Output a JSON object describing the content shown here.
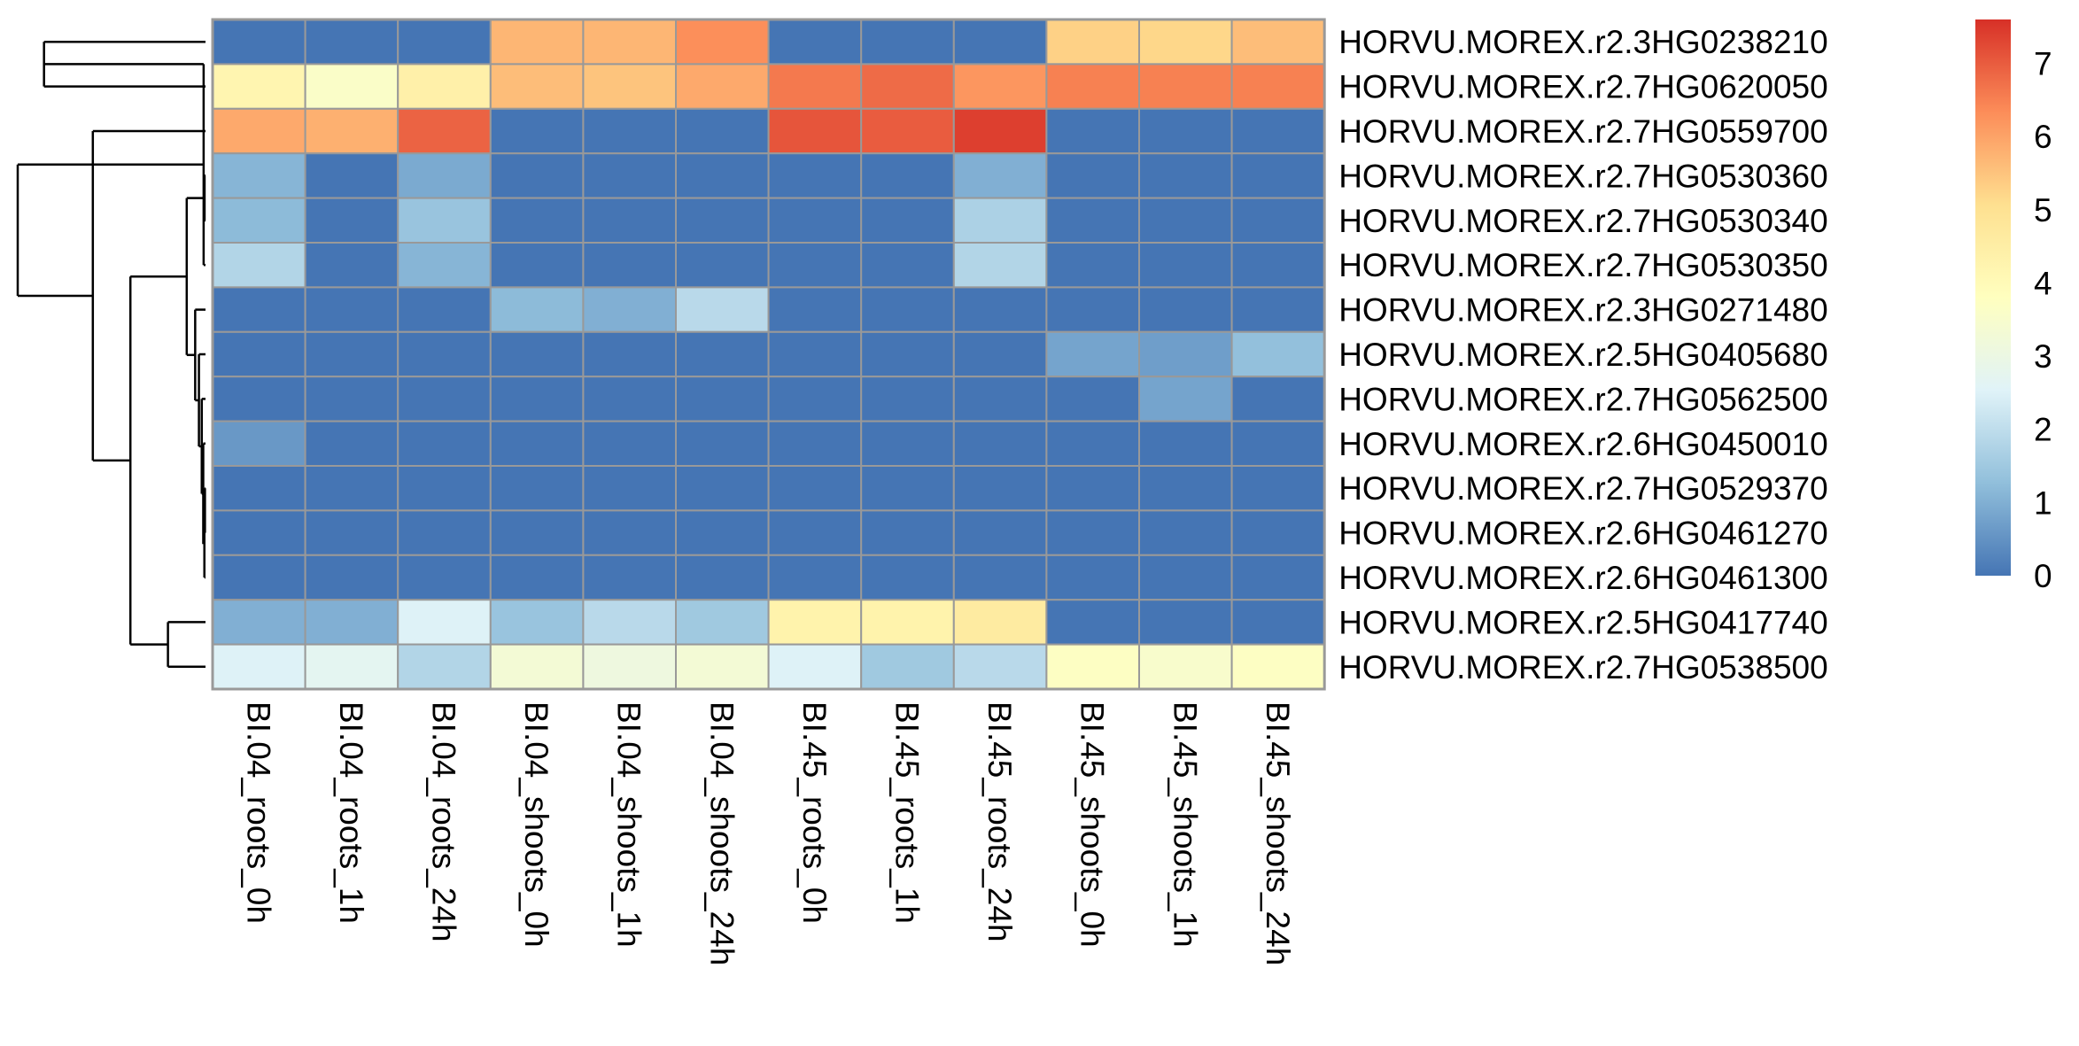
{
  "chart_data": {
    "type": "heatmap",
    "title": "",
    "xlabel": "",
    "ylabel": "",
    "columns": [
      "BI.04_roots_0h",
      "BI.04_roots_1h",
      "BI.04_roots_24h",
      "BI.04_shoots_0h",
      "BI.04_shoots_1h",
      "BI.04_shoots_24h",
      "BI.45_roots_0h",
      "BI.45_roots_1h",
      "BI.45_roots_24h",
      "BI.45_shoots_0h",
      "BI.45_shoots_1h",
      "BI.45_shoots_24h"
    ],
    "rows": [
      "HORVU.MOREX.r2.3HG0238210",
      "HORVU.MOREX.r2.7HG0620050",
      "HORVU.MOREX.r2.7HG0559700",
      "HORVU.MOREX.r2.7HG0530360",
      "HORVU.MOREX.r2.7HG0530340",
      "HORVU.MOREX.r2.7HG0530350",
      "HORVU.MOREX.r2.3HG0271480",
      "HORVU.MOREX.r2.5HG0405680",
      "HORVU.MOREX.r2.7HG0562500",
      "HORVU.MOREX.r2.6HG0450010",
      "HORVU.MOREX.r2.7HG0529370",
      "HORVU.MOREX.r2.6HG0461270",
      "HORVU.MOREX.r2.6HG0461300",
      "HORVU.MOREX.r2.5HG0417740",
      "HORVU.MOREX.r2.7HG0538500"
    ],
    "values": [
      [
        0.0,
        0.0,
        0.0,
        5.7,
        5.7,
        6.3,
        0.0,
        0.0,
        0.0,
        5.3,
        5.2,
        5.6
      ],
      [
        4.2,
        3.6,
        4.4,
        5.6,
        5.5,
        5.9,
        6.6,
        6.8,
        6.2,
        6.5,
        6.5,
        6.5
      ],
      [
        5.9,
        5.8,
        6.9,
        0.0,
        0.0,
        0.0,
        7.1,
        7.0,
        7.4,
        0.0,
        0.0,
        0.0
      ],
      [
        1.1,
        0.0,
        0.9,
        0.0,
        0.0,
        0.0,
        0.0,
        0.0,
        1.0,
        0.0,
        0.0,
        0.0
      ],
      [
        1.2,
        0.0,
        1.4,
        0.0,
        0.0,
        0.0,
        0.0,
        0.0,
        1.7,
        0.0,
        0.0,
        0.0
      ],
      [
        1.8,
        0.0,
        1.1,
        0.0,
        0.0,
        0.0,
        0.0,
        0.0,
        1.8,
        0.0,
        0.0,
        0.0
      ],
      [
        0.0,
        0.0,
        0.0,
        1.2,
        1.0,
        1.9,
        0.0,
        0.0,
        0.0,
        0.0,
        0.0,
        0.0
      ],
      [
        0.0,
        0.0,
        0.0,
        0.0,
        0.0,
        0.0,
        0.0,
        0.0,
        0.0,
        0.8,
        0.7,
        1.3
      ],
      [
        0.0,
        0.0,
        0.0,
        0.0,
        0.0,
        0.0,
        0.0,
        0.0,
        0.0,
        0.0,
        0.8,
        0.0
      ],
      [
        0.6,
        0.0,
        0.0,
        0.0,
        0.0,
        0.0,
        0.0,
        0.0,
        0.0,
        0.0,
        0.0,
        0.0
      ],
      [
        0.0,
        0.0,
        0.0,
        0.0,
        0.0,
        0.0,
        0.0,
        0.0,
        0.0,
        0.0,
        0.0,
        0.0
      ],
      [
        0.0,
        0.0,
        0.0,
        0.0,
        0.0,
        0.0,
        0.0,
        0.0,
        0.0,
        0.0,
        0.0,
        0.0
      ],
      [
        0.0,
        0.0,
        0.0,
        0.0,
        0.0,
        0.0,
        0.0,
        0.0,
        0.0,
        0.0,
        0.0,
        0.0
      ],
      [
        1.0,
        1.0,
        2.5,
        1.4,
        1.9,
        1.5,
        4.3,
        4.3,
        4.6,
        0.0,
        0.0,
        0.0
      ],
      [
        2.5,
        2.7,
        1.8,
        3.3,
        3.1,
        3.3,
        2.5,
        1.5,
        1.9,
        3.7,
        3.5,
        3.7
      ]
    ],
    "colorbar": {
      "ticks": [
        "0",
        "1",
        "2",
        "3",
        "4",
        "5",
        "6",
        "7"
      ],
      "min": 0,
      "max": 7.6,
      "stops": [
        "#4575b4",
        "#91bfdb",
        "#e0f3f8",
        "#ffffbf",
        "#fee090",
        "#fc8d59",
        "#d73027"
      ]
    },
    "cell_border_color": "#999999",
    "dendrogram": {
      "leaf_order": [
        0,
        1,
        2,
        3,
        4,
        5,
        6,
        7,
        8,
        9,
        10,
        11,
        12,
        13,
        14
      ],
      "merges": [
        [
          0,
          1,
          0.86
        ],
        [
          3,
          4,
          0.005
        ],
        [
          15,
          5,
          0.01
        ],
        [
          10,
          11,
          0.003
        ],
        [
          18,
          12,
          0.006
        ],
        [
          9,
          19,
          0.012
        ],
        [
          8,
          20,
          0.02
        ],
        [
          7,
          21,
          0.035
        ],
        [
          6,
          22,
          0.055
        ],
        [
          16,
          23,
          0.1
        ],
        [
          13,
          14,
          0.2
        ],
        [
          24,
          25,
          0.4
        ],
        [
          2,
          26,
          0.6
        ],
        [
          17,
          27,
          1.0
        ]
      ]
    }
  }
}
